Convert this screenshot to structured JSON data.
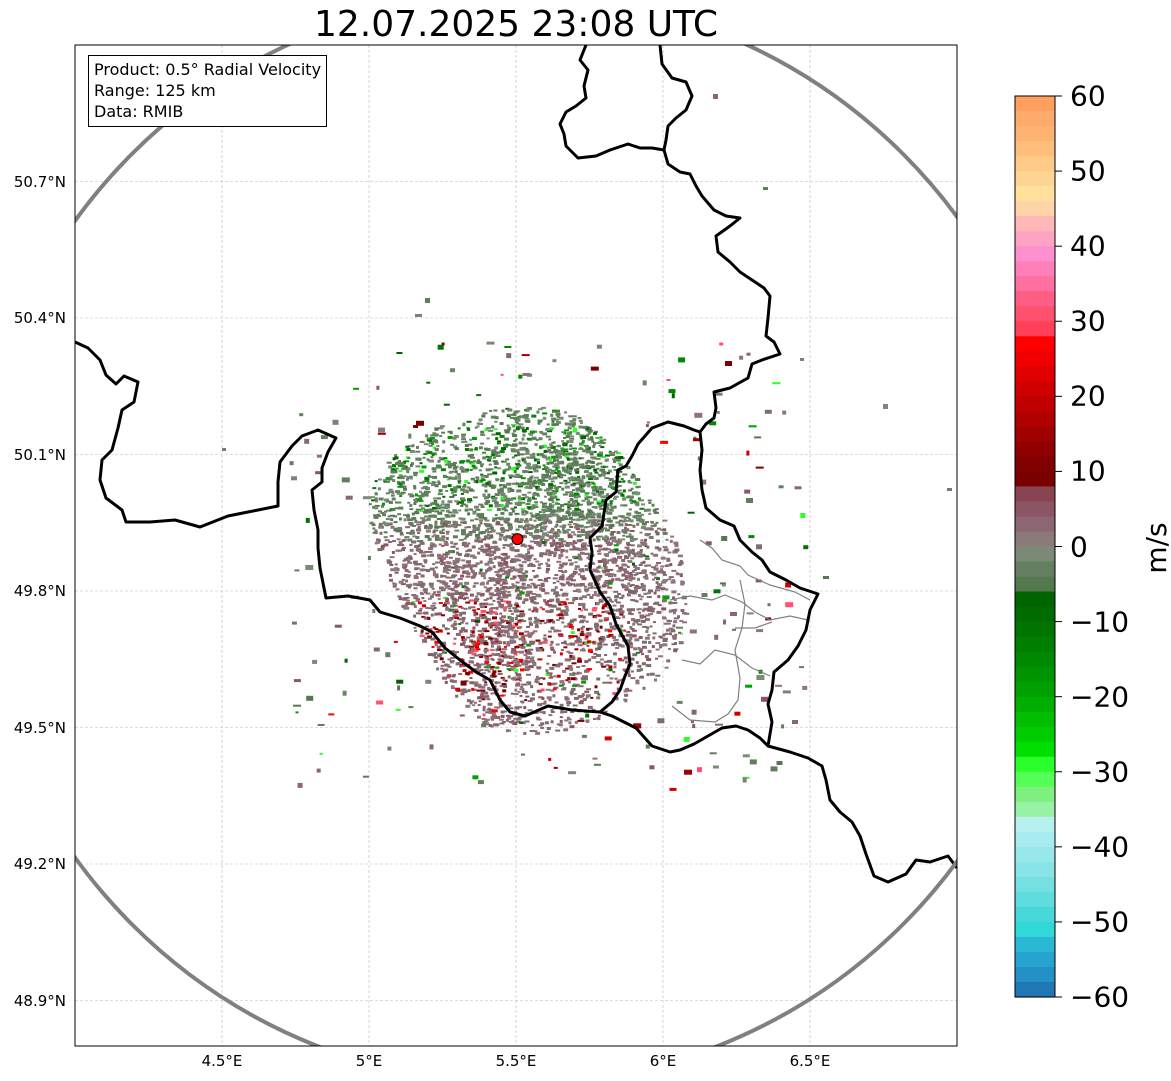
{
  "title": "12.07.2025 23:08 UTC",
  "info": {
    "product": "Product: 0.5° Radial Velocity",
    "range": "Range: 125 km",
    "source": "Data: RMIB"
  },
  "map": {
    "lon_range": [
      4.0,
      7.0
    ],
    "lat_range": [
      48.8,
      51.0
    ],
    "radar_site": {
      "lon": 5.505,
      "lat": 49.914
    },
    "range_km": 125,
    "lat_ticks": [
      {
        "value": 50.7,
        "label": "50.7°N"
      },
      {
        "value": 50.4,
        "label": "50.4°N"
      },
      {
        "value": 50.1,
        "label": "50.1°N"
      },
      {
        "value": 49.8,
        "label": "49.8°N"
      },
      {
        "value": 49.5,
        "label": "49.5°N"
      },
      {
        "value": 49.2,
        "label": "49.2°N"
      },
      {
        "value": 48.9,
        "label": "48.9°N"
      }
    ],
    "lon_ticks": [
      {
        "value": 4.5,
        "label": "4.5°E"
      },
      {
        "value": 5.0,
        "label": "5°E"
      },
      {
        "value": 5.5,
        "label": "5.5°E"
      },
      {
        "value": 6.0,
        "label": "6°E"
      },
      {
        "value": 6.5,
        "label": "6.5°E"
      }
    ],
    "colors": {
      "range_ring": "#808080",
      "border": "#000000",
      "admin_border": "#808080",
      "grid": "#bbbbbb",
      "site_marker": "#ff0000"
    }
  },
  "colorbar": {
    "unit": "m/s",
    "min": -60,
    "max": 60,
    "ticks": [
      {
        "value": 60,
        "label": "60"
      },
      {
        "value": 50,
        "label": "50"
      },
      {
        "value": 40,
        "label": "40"
      },
      {
        "value": 30,
        "label": "30"
      },
      {
        "value": 20,
        "label": "20"
      },
      {
        "value": 10,
        "label": "10"
      },
      {
        "value": 0,
        "label": "0"
      },
      {
        "value": -10,
        "label": "−10"
      },
      {
        "value": -20,
        "label": "−20"
      },
      {
        "value": -30,
        "label": "−30"
      },
      {
        "value": -40,
        "label": "−40"
      },
      {
        "value": -50,
        "label": "−50"
      },
      {
        "value": -60,
        "label": "−60"
      }
    ],
    "bands": [
      {
        "from": 58,
        "to": 60,
        "color": "#ff9f5e"
      },
      {
        "from": 56,
        "to": 58,
        "color": "#ffa96a"
      },
      {
        "from": 54,
        "to": 56,
        "color": "#ffb373"
      },
      {
        "from": 52,
        "to": 54,
        "color": "#ffbe7b"
      },
      {
        "from": 50,
        "to": 52,
        "color": "#ffc987"
      },
      {
        "from": 48,
        "to": 50,
        "color": "#ffd594"
      },
      {
        "from": 46,
        "to": 48,
        "color": "#ffe19c"
      },
      {
        "from": 44,
        "to": 46,
        "color": "#ffd5a8"
      },
      {
        "from": 42,
        "to": 44,
        "color": "#ffb7b7"
      },
      {
        "from": 40,
        "to": 42,
        "color": "#ffa3c4"
      },
      {
        "from": 38,
        "to": 40,
        "color": "#ff90cf"
      },
      {
        "from": 36,
        "to": 38,
        "color": "#ff80b8"
      },
      {
        "from": 34,
        "to": 36,
        "color": "#ff6f9f"
      },
      {
        "from": 32,
        "to": 34,
        "color": "#ff5e84"
      },
      {
        "from": 30,
        "to": 32,
        "color": "#ff506e"
      },
      {
        "from": 28,
        "to": 30,
        "color": "#ff4058"
      },
      {
        "from": 26,
        "to": 28,
        "color": "#ff0000"
      },
      {
        "from": 24,
        "to": 26,
        "color": "#f00000"
      },
      {
        "from": 22,
        "to": 24,
        "color": "#e00000"
      },
      {
        "from": 20,
        "to": 22,
        "color": "#d00000"
      },
      {
        "from": 18,
        "to": 20,
        "color": "#c00000"
      },
      {
        "from": 16,
        "to": 18,
        "color": "#b00000"
      },
      {
        "from": 14,
        "to": 16,
        "color": "#a00000"
      },
      {
        "from": 12,
        "to": 14,
        "color": "#900000"
      },
      {
        "from": 10,
        "to": 12,
        "color": "#800000"
      },
      {
        "from": 8,
        "to": 10,
        "color": "#7a0000"
      },
      {
        "from": 6,
        "to": 8,
        "color": "#884450"
      },
      {
        "from": 4,
        "to": 6,
        "color": "#8b5563"
      },
      {
        "from": 2,
        "to": 4,
        "color": "#8c6672"
      },
      {
        "from": 0,
        "to": 2,
        "color": "#8a7a79"
      },
      {
        "from": -2,
        "to": 0,
        "color": "#7a8a76"
      },
      {
        "from": -4,
        "to": -2,
        "color": "#647f60"
      },
      {
        "from": -6,
        "to": -4,
        "color": "#56784f"
      },
      {
        "from": -8,
        "to": -6,
        "color": "#006400"
      },
      {
        "from": -10,
        "to": -8,
        "color": "#006c00"
      },
      {
        "from": -12,
        "to": -10,
        "color": "#007400"
      },
      {
        "from": -14,
        "to": -12,
        "color": "#007e00"
      },
      {
        "from": -16,
        "to": -14,
        "color": "#008800"
      },
      {
        "from": -18,
        "to": -16,
        "color": "#009400"
      },
      {
        "from": -20,
        "to": -18,
        "color": "#00a000"
      },
      {
        "from": -22,
        "to": -20,
        "color": "#00ae00"
      },
      {
        "from": -24,
        "to": -22,
        "color": "#00bd00"
      },
      {
        "from": -26,
        "to": -24,
        "color": "#00cc00"
      },
      {
        "from": -28,
        "to": -26,
        "color": "#00e000"
      },
      {
        "from": -30,
        "to": -28,
        "color": "#2aff2a"
      },
      {
        "from": -32,
        "to": -30,
        "color": "#55ff55"
      },
      {
        "from": -34,
        "to": -32,
        "color": "#7ff07f"
      },
      {
        "from": -36,
        "to": -34,
        "color": "#98f2a6"
      },
      {
        "from": -38,
        "to": -36,
        "color": "#b8f0f0"
      },
      {
        "from": -40,
        "to": -38,
        "color": "#a8ecf0"
      },
      {
        "from": -42,
        "to": -40,
        "color": "#98e8ea"
      },
      {
        "from": -44,
        "to": -42,
        "color": "#88e4e6"
      },
      {
        "from": -46,
        "to": -44,
        "color": "#74e0e2"
      },
      {
        "from": -48,
        "to": -46,
        "color": "#5edcde"
      },
      {
        "from": -50,
        "to": -48,
        "color": "#48d8da"
      },
      {
        "from": -52,
        "to": -50,
        "color": "#30d8d8"
      },
      {
        "from": -54,
        "to": -52,
        "color": "#2ab8d4"
      },
      {
        "from": -56,
        "to": -54,
        "color": "#24a4cf"
      },
      {
        "from": -58,
        "to": -56,
        "color": "#2490c8"
      },
      {
        "from": -60,
        "to": -58,
        "color": "#1f77b4"
      }
    ]
  }
}
